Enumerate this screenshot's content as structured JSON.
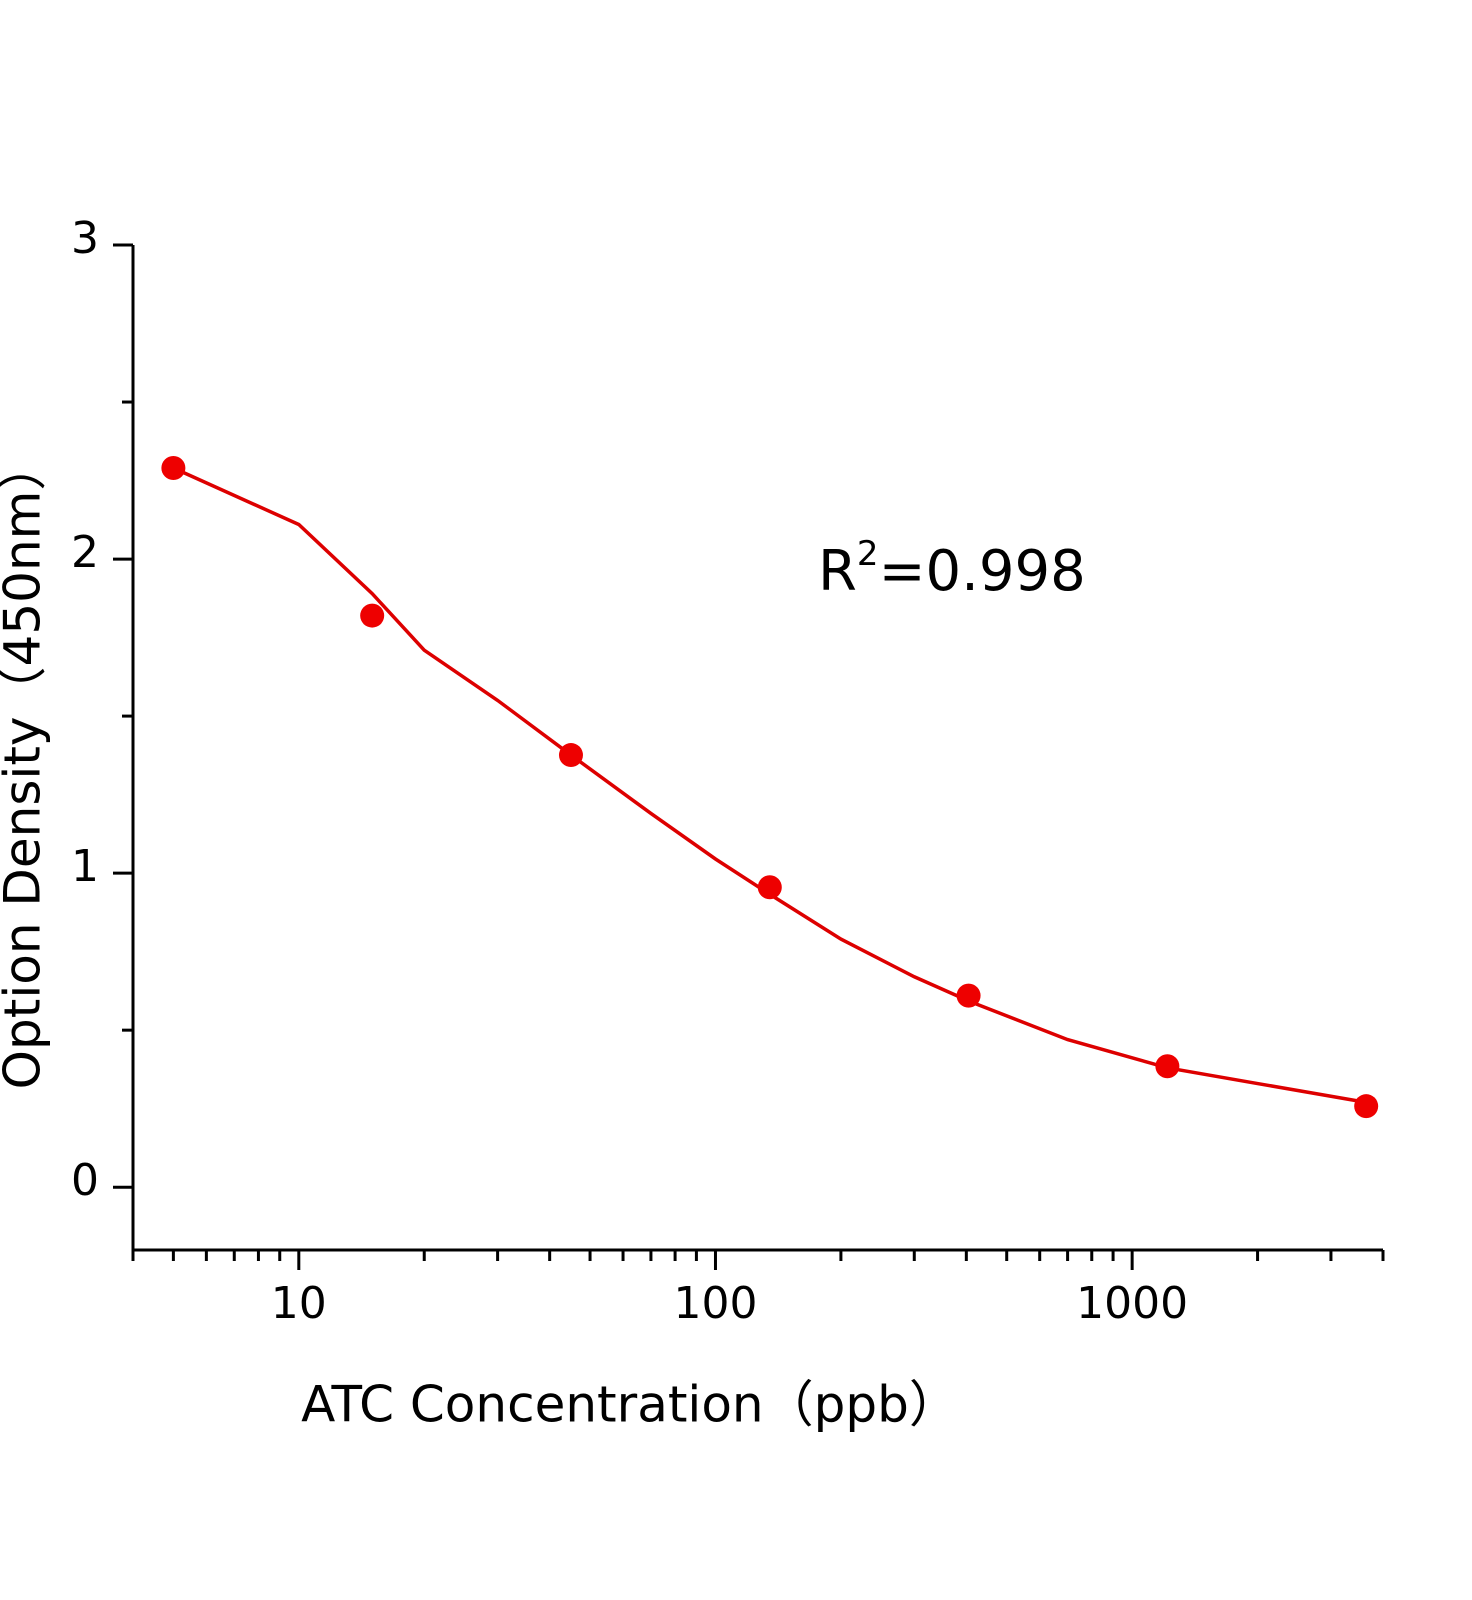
{
  "chart_data": {
    "type": "scatter",
    "xlabel": "ATC Concentration（ppb）",
    "ylabel": "Option Density（450nm）",
    "annotation": [
      "R",
      "2",
      "=0.998"
    ],
    "x_log": true,
    "x": [
      5,
      15,
      45,
      135,
      405,
      1215,
      3645
    ],
    "series": [
      {
        "color": "#ee0000",
        "values": [
          2.29,
          1.82,
          1.376,
          0.955,
          0.61,
          0.385,
          0.258
        ]
      }
    ],
    "fit": {
      "color": "#dd0000",
      "x": [
        5,
        10,
        15,
        20,
        30,
        45,
        70,
        100,
        136,
        200,
        300,
        410,
        700,
        1215,
        2000,
        3645
      ],
      "y": [
        2.29,
        2.11,
        1.89,
        1.71,
        1.55,
        1.376,
        1.19,
        1.045,
        0.93,
        0.79,
        0.67,
        0.59,
        0.47,
        0.38,
        0.33,
        0.27
      ]
    },
    "xlim": [
      4,
      4000
    ],
    "xticks": [
      10,
      100,
      1000
    ],
    "x_minor_ticks": [
      4,
      5,
      6,
      7,
      8,
      9,
      20,
      30,
      40,
      50,
      60,
      70,
      80,
      90,
      200,
      300,
      400,
      500,
      600,
      700,
      800,
      900,
      2000,
      3000,
      4000
    ],
    "ylim": [
      -0.2,
      3
    ],
    "yticks": [
      0,
      1,
      2,
      3
    ],
    "y_minor_ticks": [
      0.5,
      1.5,
      2.5
    ]
  }
}
